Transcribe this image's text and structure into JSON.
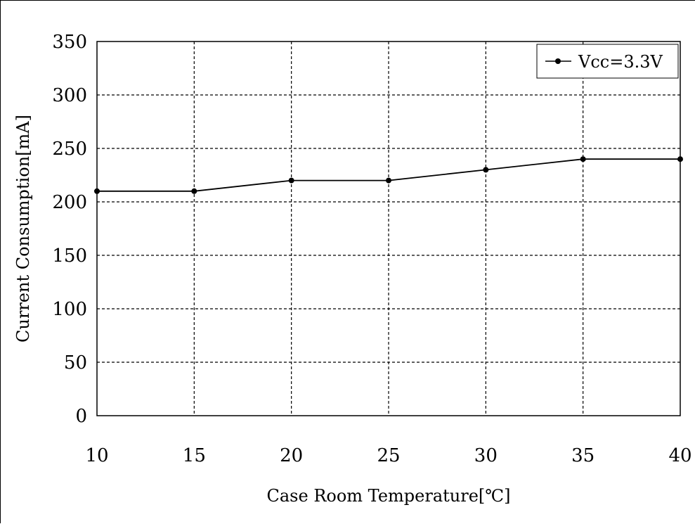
{
  "chart_data": {
    "type": "line",
    "xlabel": "Case Room Temperature[℃]",
    "ylabel": "Current Consumption[mA]",
    "x": [
      10,
      15,
      20,
      25,
      30,
      35,
      40
    ],
    "series": [
      {
        "name": "Vcc=3.3V",
        "values": [
          210,
          210,
          220,
          220,
          230,
          240,
          240
        ]
      }
    ],
    "xlim": [
      10,
      40
    ],
    "ylim": [
      0,
      350
    ],
    "xticks": [
      10,
      15,
      20,
      25,
      30,
      35,
      40
    ],
    "yticks": [
      0,
      50,
      100,
      150,
      200,
      250,
      300,
      350
    ],
    "grid": true,
    "legend_position": "top-right",
    "colors": {
      "line": "#000000",
      "grid": "#000000"
    }
  }
}
